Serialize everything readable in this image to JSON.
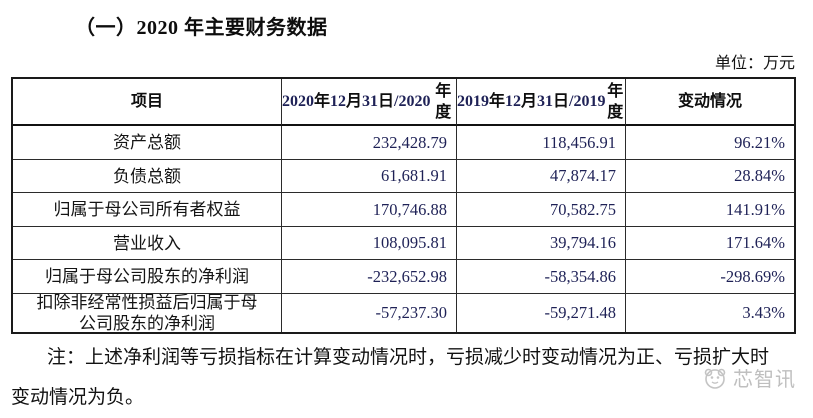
{
  "colors": {
    "body_text": "#141414",
    "number_text": "#1e2156",
    "table_border": "#1a1a1a",
    "watermark": "#bfbfbf",
    "background": "#ffffff"
  },
  "document": {
    "section_title": "（一）2020 年主要财务数据",
    "unit_label": "单位：万元",
    "note": "注：上述净利润等亏损指标在计算变动情况时，亏损减少时变动情况为正、亏损扩大时\n变动情况为负。",
    "watermark_text": "芯智讯"
  },
  "table": {
    "headers": {
      "item": "项目",
      "col_2020": "2020 年 12 月 31 日\n/2020 年度",
      "col_2019": "2019 年 12 月 31 日\n/2019 年度",
      "change": "变动情况"
    },
    "rows": [
      {
        "label": "资产总额",
        "v2020": "232,428.79",
        "v2019": "118,456.91",
        "change": "96.21%"
      },
      {
        "label": "负债总额",
        "v2020": "61,681.91",
        "v2019": "47,874.17",
        "change": "28.84%"
      },
      {
        "label": "归属于母公司所有者权益",
        "v2020": "170,746.88",
        "v2019": "70,582.75",
        "change": "141.91%"
      },
      {
        "label": "营业收入",
        "v2020": "108,095.81",
        "v2019": "39,794.16",
        "change": "171.64%"
      },
      {
        "label": "归属于母公司股东的净利润",
        "v2020": "-232,652.98",
        "v2019": "-58,354.86",
        "change": "-298.69%"
      },
      {
        "label": "扣除非经常性损益后归属于母\n公司股东的净利润",
        "v2020": "-57,237.30",
        "v2019": "-59,271.48",
        "change": "3.43%"
      }
    ]
  }
}
